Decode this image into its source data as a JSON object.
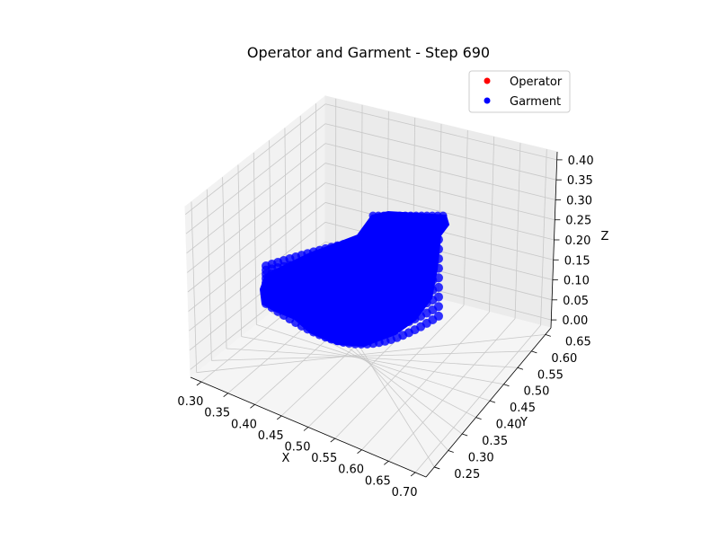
{
  "chart_data": {
    "type": "scatter",
    "projection": "3d",
    "title": "Operator and Garment - Step 690",
    "xlabel": "X",
    "ylabel": "Y",
    "zlabel": "Z",
    "xlim": [
      0.28,
      0.72
    ],
    "ylim": [
      0.22,
      0.67
    ],
    "zlim": [
      -0.02,
      0.42
    ],
    "xticks": [
      "0.30",
      "0.35",
      "0.40",
      "0.45",
      "0.50",
      "0.55",
      "0.60",
      "0.65",
      "0.70"
    ],
    "yticks": [
      "0.25",
      "0.30",
      "0.35",
      "0.40",
      "0.45",
      "0.50",
      "0.55",
      "0.60",
      "0.65"
    ],
    "zticks": [
      "0.00",
      "0.05",
      "0.10",
      "0.15",
      "0.20",
      "0.25",
      "0.30",
      "0.35",
      "0.40"
    ],
    "grid": true,
    "legend": {
      "position": "top-right"
    },
    "series": [
      {
        "name": "Operator",
        "color": "#ff0000",
        "points": []
      },
      {
        "name": "Garment",
        "color": "#0000ff",
        "surface": "cloth-sheet"
      }
    ]
  }
}
